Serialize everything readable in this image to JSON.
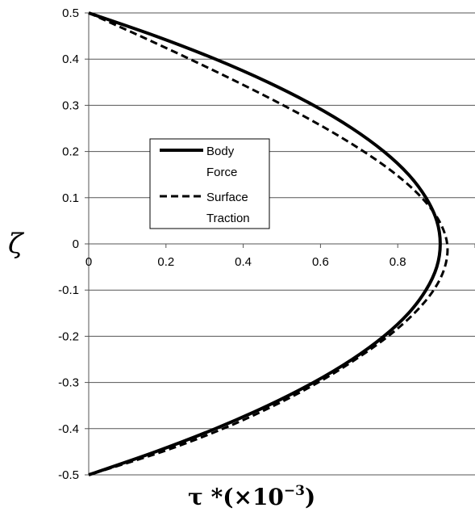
{
  "chart_data": {
    "type": "line",
    "title": "",
    "xlabel": "τ *(×10",
    "xlabel_exp": "−3",
    "xlabel_close": ")",
    "ylabel": "ζ",
    "xlim": [
      0,
      1
    ],
    "ylim": [
      -0.5,
      0.5
    ],
    "x_tick_labels": [
      "0",
      "0.2",
      "0.4",
      "0.6",
      "0.8",
      ""
    ],
    "x_ticks": [
      0,
      0.2,
      0.4,
      0.6,
      0.8,
      1.0
    ],
    "y_ticks": [
      0.5,
      0.4,
      0.3,
      0.2,
      0.1,
      0,
      -0.1,
      -0.2,
      -0.3,
      -0.4,
      -0.5
    ],
    "y_tick_labels": [
      "0.5",
      "0.4",
      "0.3",
      "0.2",
      "0.1",
      "0",
      "-0.1",
      "-0.2",
      "-0.3",
      "-0.4",
      "-0.5"
    ],
    "grid": "horizontal",
    "legend_position": "upper-left-center",
    "legend": [
      {
        "line1": "Body",
        "line2": "Force",
        "style": "solid"
      },
      {
        "line1": "Surface",
        "line2": "Traction",
        "style": "dashed"
      }
    ],
    "series": [
      {
        "name": "Body Force",
        "style": "solid",
        "y": [
          0.5,
          0.45,
          0.4,
          0.35,
          0.3,
          0.25,
          0.2,
          0.15,
          0.1,
          0.05,
          0,
          -0.05,
          -0.1,
          -0.15,
          -0.2,
          -0.25,
          -0.3,
          -0.35,
          -0.4,
          -0.45,
          -0.5
        ],
        "x": [
          0.0,
          0.173,
          0.328,
          0.464,
          0.582,
          0.682,
          0.764,
          0.828,
          0.873,
          0.901,
          0.91,
          0.901,
          0.873,
          0.828,
          0.764,
          0.682,
          0.582,
          0.464,
          0.328,
          0.173,
          0.0
        ]
      },
      {
        "name": "Surface Traction",
        "style": "dashed",
        "y": [
          0.5,
          0.45,
          0.4,
          0.35,
          0.3,
          0.25,
          0.2,
          0.15,
          0.1,
          0.05,
          0,
          -0.05,
          -0.1,
          -0.15,
          -0.2,
          -0.25,
          -0.3,
          -0.35,
          -0.4,
          -0.45,
          -0.5
        ],
        "x": [
          0.0,
          0.133,
          0.262,
          0.386,
          0.504,
          0.614,
          0.712,
          0.796,
          0.862,
          0.907,
          0.928,
          0.922,
          0.893,
          0.843,
          0.775,
          0.691,
          0.594,
          0.48,
          0.348,
          0.19,
          0.0
        ]
      }
    ]
  }
}
